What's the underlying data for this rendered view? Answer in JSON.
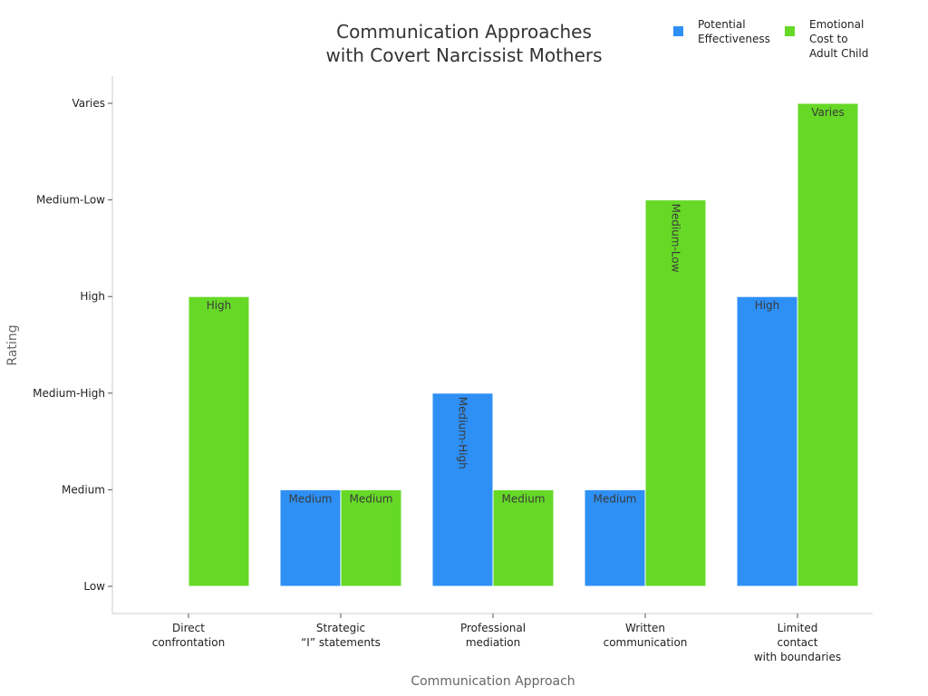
{
  "chart_data": {
    "type": "bar",
    "title": [
      "Communication Approaches",
      "with Covert Narcissist Mothers"
    ],
    "xlabel": "Communication Approach",
    "ylabel": "Rating",
    "levels": [
      "Low",
      "Medium",
      "Medium-High",
      "High",
      "Medium-Low",
      "Varies"
    ],
    "categories": [
      [
        "Direct",
        "confrontation"
      ],
      [
        "Strategic",
        "“I” statements"
      ],
      [
        "Professional",
        "mediation"
      ],
      [
        "Written",
        "communication"
      ],
      [
        "Limited",
        "contact",
        "with boundaries"
      ]
    ],
    "series": [
      {
        "name": "Potential Effectiveness",
        "legend_lines": [
          "Potential",
          "Effectiveness"
        ],
        "color": "#2E90F5",
        "values": [
          "Low",
          "Medium",
          "Medium-High",
          "Medium",
          "High"
        ]
      },
      {
        "name": "Emotional Cost to Adult Child",
        "legend_lines": [
          "Emotional",
          "Cost to",
          "Adult Child"
        ],
        "color": "#66D927",
        "values": [
          "High",
          "Medium",
          "Medium",
          "Medium-Low",
          "Varies"
        ]
      }
    ],
    "legend": "top-right",
    "grid": false
  }
}
